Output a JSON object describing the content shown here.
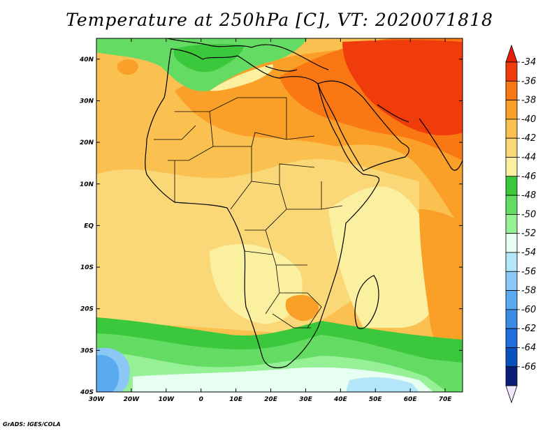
{
  "title": "Temperature at 250hPa [C], VT: 2020071818",
  "credit": "GrADS: IGES/COLA",
  "map": {
    "lon_range": [
      -30,
      75
    ],
    "lat_range": [
      -40,
      45
    ],
    "lat_ticks": [
      {
        "lat": 40,
        "label": "40N"
      },
      {
        "lat": 30,
        "label": "30N"
      },
      {
        "lat": 20,
        "label": "20N"
      },
      {
        "lat": 10,
        "label": "10N"
      },
      {
        "lat": 0,
        "label": "EQ"
      },
      {
        "lat": -10,
        "label": "10S"
      },
      {
        "lat": -20,
        "label": "20S"
      },
      {
        "lat": -30,
        "label": "30S"
      },
      {
        "lat": -40,
        "label": "40S"
      }
    ],
    "lon_ticks": [
      {
        "lon": -30,
        "label": "30W"
      },
      {
        "lon": -20,
        "label": "20W"
      },
      {
        "lon": -10,
        "label": "10W"
      },
      {
        "lon": 0,
        "label": "0"
      },
      {
        "lon": 10,
        "label": "10E"
      },
      {
        "lon": 20,
        "label": "20E"
      },
      {
        "lon": 30,
        "label": "30E"
      },
      {
        "lon": 40,
        "label": "40E"
      },
      {
        "lon": 50,
        "label": "50E"
      },
      {
        "lon": 60,
        "label": "60E"
      },
      {
        "lon": 70,
        "label": "70E"
      }
    ]
  },
  "colorbar": {
    "labels": [
      "-34",
      "-36",
      "-38",
      "-40",
      "-42",
      "-44",
      "-46",
      "-48",
      "-50",
      "-52",
      "-54",
      "-56",
      "-58",
      "-60",
      "-62",
      "-64",
      "-66"
    ],
    "colors": [
      "#f03c0a",
      "#fa7814",
      "#faa028",
      "#fac050",
      "#fad878",
      "#faf0a0",
      "#3cc83c",
      "#64dc64",
      "#96f096",
      "#e6fff0",
      "#b4e6fa",
      "#8cc8f5",
      "#5aaaf0",
      "#3c8ce6",
      "#1e6edc",
      "#0a50be",
      "#0a1e78"
    ],
    "top_arrow_color": "#e61e0a",
    "bottom_arrow_color": "#f0e6fa"
  }
}
